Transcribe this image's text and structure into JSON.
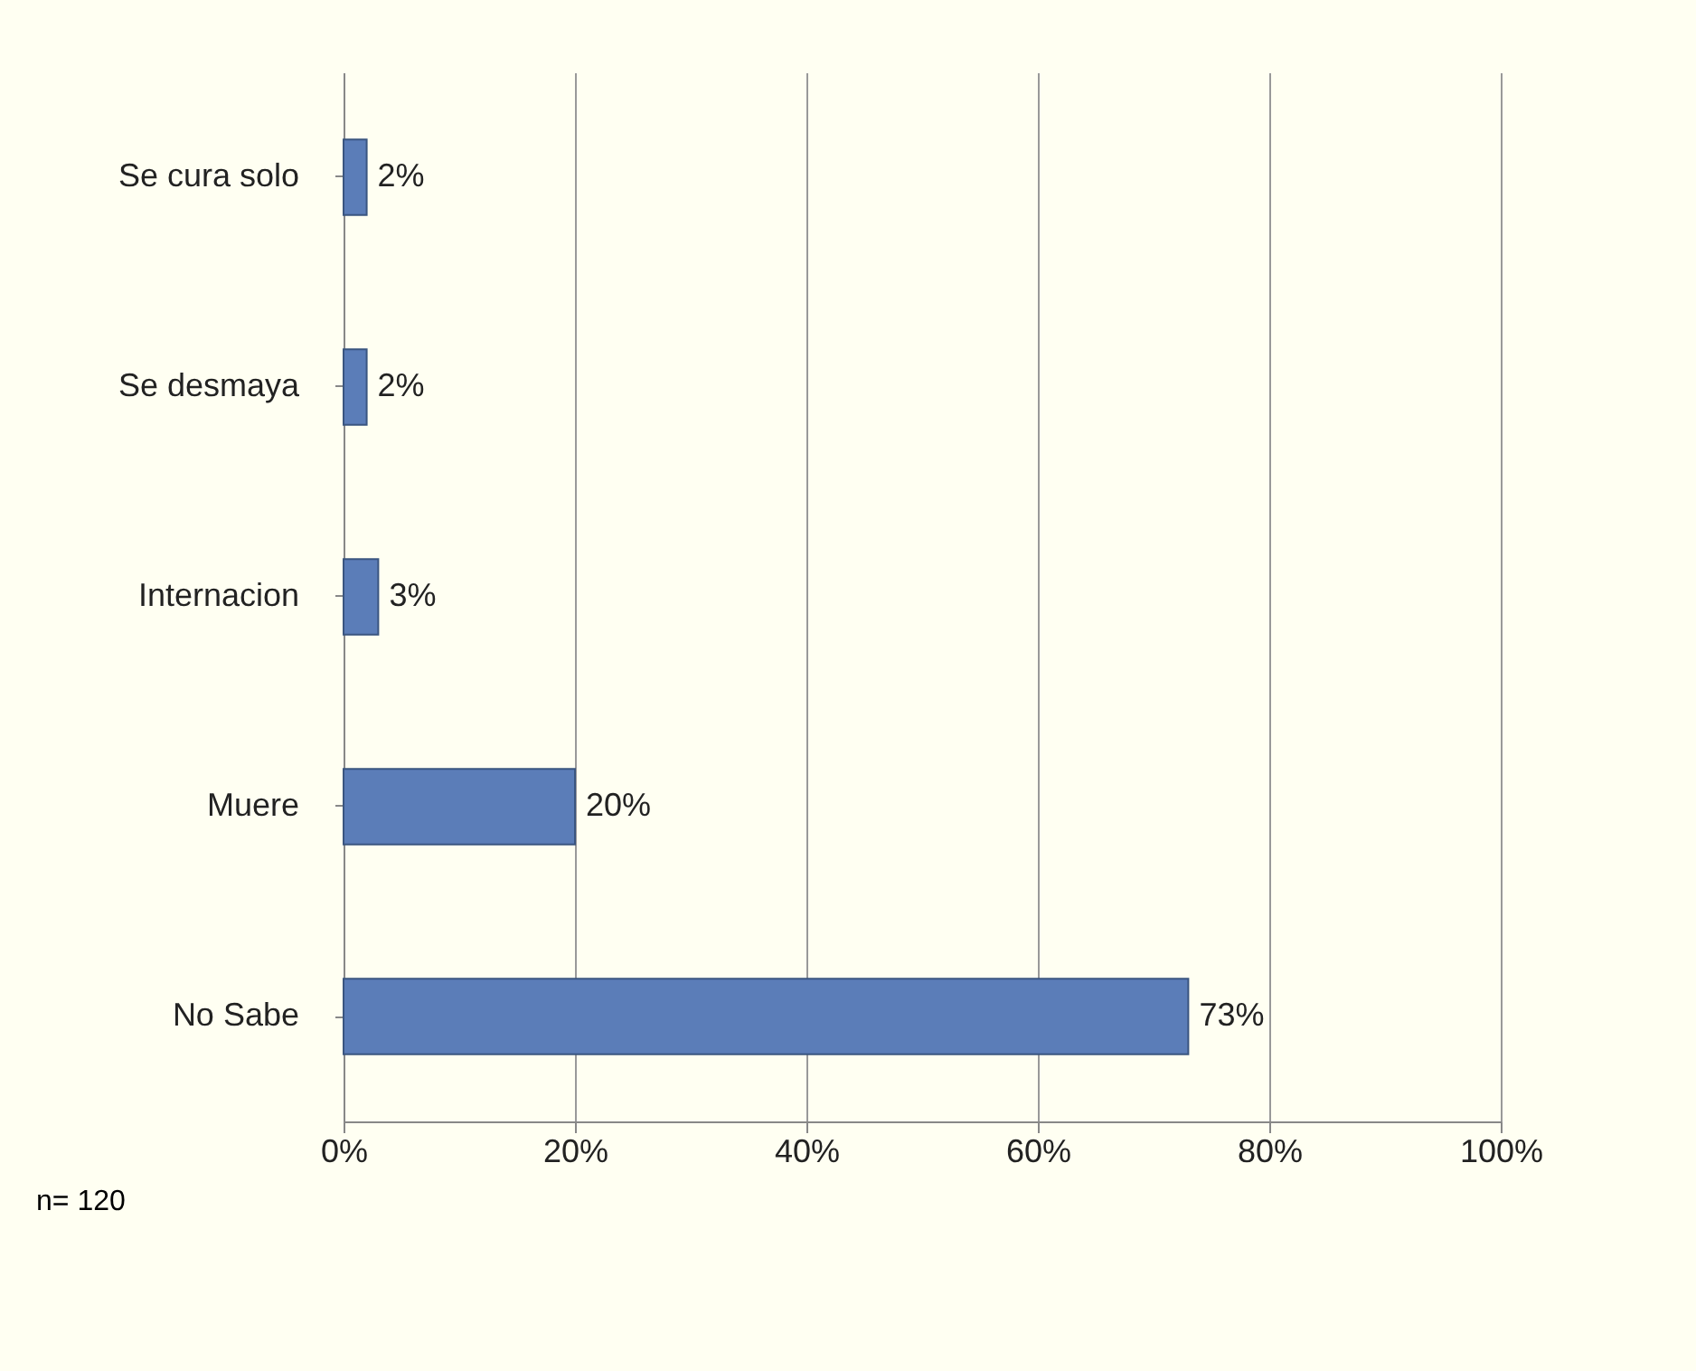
{
  "chart_data": {
    "type": "bar",
    "orientation": "horizontal",
    "categories": [
      "Se cura solo",
      "Se desmaya",
      "Internacion",
      "Muere",
      "No Sabe"
    ],
    "values": [
      2,
      2,
      3,
      20,
      73
    ],
    "value_labels": [
      "2%",
      "2%",
      "3%",
      "20%",
      "73%"
    ],
    "color": "#5b7db8",
    "xlim": [
      0,
      100
    ],
    "xticks": [
      {
        "value": 0,
        "label": "0%"
      },
      {
        "value": 20,
        "label": "20%"
      },
      {
        "value": 40,
        "label": "40%"
      },
      {
        "value": 60,
        "label": "60%"
      },
      {
        "value": 80,
        "label": "80%"
      },
      {
        "value": 100,
        "label": "100%"
      }
    ],
    "grid": "x",
    "annotations": [
      "n= 120"
    ]
  }
}
